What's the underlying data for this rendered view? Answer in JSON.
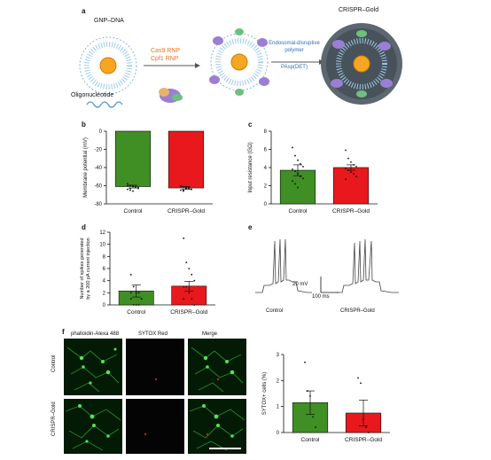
{
  "panel_letters": {
    "a": "a",
    "b": "b",
    "c": "c",
    "d": "d",
    "e": "e",
    "f": "f"
  },
  "panel_a": {
    "gnp_dna": "GNP–DNA",
    "oligonucleotide": "Oligonucleotide",
    "cas9_rnp": "Cas9 RNP",
    "cpf1_rnp": "Cpf1 RNP",
    "endosomal_line1": "Endosomal-disruptive",
    "endosomal_line2": "polymer",
    "pasp": "PAsp(DET)",
    "crispr_gold": "CRISPR–Gold",
    "colors": {
      "rnp_text": "#e8742a",
      "polymer_text": "#2f6db3",
      "gold_core": "#f5a623"
    }
  },
  "panel_e": {
    "scale_mv": "20 mV",
    "scale_ms": "100 ms",
    "control_label": "Control",
    "crispr_label": "CRISPR–Gold"
  },
  "panel_f": {
    "col_headers": [
      "phalloidin-Alexa 488",
      "SYTOX Red",
      "Merge"
    ],
    "row_labels": [
      "Control",
      "CRISPR–Gold"
    ]
  },
  "chart_data": [
    {
      "id": "b",
      "type": "bar",
      "categories": [
        "Control",
        "CRISPR–Gold"
      ],
      "values": [
        -61,
        -62.5
      ],
      "errors": [
        1.5,
        1.5
      ],
      "colors": [
        "#3f8f24",
        "#e8181c"
      ],
      "ylabel": "Membrane potential (mV)",
      "ylim": [
        -80,
        0
      ],
      "yticks": [
        0,
        -20,
        -40,
        -60,
        -80
      ],
      "points": [
        [
          -58,
          -60,
          -61,
          -62,
          -63,
          -64,
          -65,
          -66,
          -61,
          -62,
          -60,
          -63
        ],
        [
          -60,
          -61,
          -62,
          -63,
          -64,
          -65,
          -66,
          -63,
          -62,
          -64,
          -61,
          -65
        ]
      ]
    },
    {
      "id": "c",
      "type": "bar",
      "categories": [
        "Control",
        "CRISPR–Gold"
      ],
      "values": [
        3.7,
        4.0
      ],
      "errors": [
        0.6,
        0.3
      ],
      "colors": [
        "#3f8f24",
        "#e8181c"
      ],
      "ylabel": "Input resistance (GΩ)",
      "ylim": [
        0,
        8
      ],
      "yticks": [
        0,
        2,
        4,
        6,
        8
      ],
      "points": [
        [
          6.2,
          5.3,
          4.8,
          4.4,
          4.1,
          3.8,
          3.6,
          3.3,
          3.0,
          2.8,
          2.5,
          2.2,
          1.8
        ],
        [
          5.9,
          5.0,
          4.6,
          4.3,
          4.1,
          3.9,
          3.7,
          3.5,
          3.3,
          3.0,
          2.7
        ]
      ]
    },
    {
      "id": "d",
      "type": "bar",
      "categories": [
        "Control",
        "CRISPR–Gold"
      ],
      "values": [
        2.3,
        3.1
      ],
      "errors": [
        1.0,
        0.8
      ],
      "colors": [
        "#3f8f24",
        "#e8181c"
      ],
      "ylabel_lines": [
        "Number of spikes generated",
        "by a 200 pA current injection"
      ],
      "ylim": [
        0,
        12
      ],
      "yticks": [
        0,
        2,
        4,
        6,
        8,
        10,
        12
      ],
      "points": [
        [
          5,
          3,
          2,
          2,
          1,
          1,
          0,
          0,
          0,
          1,
          2
        ],
        [
          11,
          7,
          6,
          5,
          4,
          3,
          3,
          2,
          1,
          0,
          1
        ]
      ]
    },
    {
      "id": "f_chart",
      "type": "bar",
      "categories": [
        "Control",
        "CRISPR–Gold"
      ],
      "values": [
        1.15,
        0.75
      ],
      "errors": [
        0.45,
        0.5
      ],
      "colors": [
        "#3f8f24",
        "#e8181c"
      ],
      "ylabel": "SYTOX+ cells (%)",
      "ylim": [
        0,
        3
      ],
      "yticks": [
        0,
        1,
        2,
        3
      ],
      "points": [
        [
          2.7,
          1.6,
          1.4,
          0.6,
          0.2
        ],
        [
          2.1,
          1.9,
          0.5,
          0.2,
          0.0
        ]
      ]
    }
  ]
}
